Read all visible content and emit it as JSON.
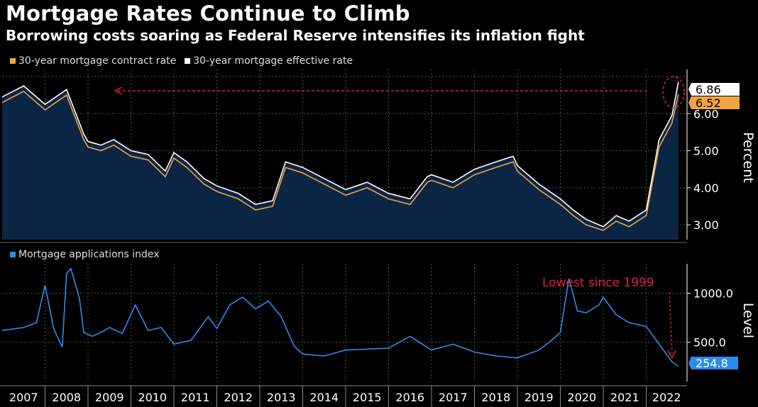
{
  "header": {
    "title": "Mortgage Rates Continue to Climb",
    "subtitle": "Borrowing costs soaring as Federal Reserve intensifies its inflation fight"
  },
  "colors": {
    "contract": "#f5a442",
    "effective": "#ffffff",
    "area": "#0b2544",
    "applications": "#2a8cf0",
    "annotation": "#e0213d",
    "grid": "#555555"
  },
  "chart_data": [
    {
      "type": "line",
      "legend": [
        "30-year mortgage contract rate",
        "30-year mortgage effective rate"
      ],
      "ylabel": "Percent",
      "ylim": [
        2.6,
        7.0
      ],
      "yticks": [
        "3.00",
        "4.00",
        "5.00",
        "6.00"
      ],
      "grid": true,
      "last_value_labels": {
        "effective": "6.86",
        "contract": "6.52"
      },
      "x": [
        2007.0,
        2007.5,
        2008.0,
        2008.5,
        2008.9,
        2009.0,
        2009.3,
        2009.6,
        2010.0,
        2010.4,
        2010.8,
        2011.0,
        2011.3,
        2011.7,
        2012.0,
        2012.5,
        2012.9,
        2013.3,
        2013.6,
        2014.0,
        2014.5,
        2015.0,
        2015.5,
        2016.0,
        2016.5,
        2016.9,
        2017.0,
        2017.5,
        2018.0,
        2018.5,
        2018.9,
        2019.0,
        2019.5,
        2020.0,
        2020.3,
        2020.6,
        2021.0,
        2021.3,
        2021.6,
        2022.0,
        2022.3,
        2022.6,
        2022.75
      ],
      "series": [
        {
          "name": "30-year mortgage effective rate",
          "values": [
            6.45,
            6.75,
            6.25,
            6.65,
            5.45,
            5.25,
            5.15,
            5.3,
            5.0,
            4.9,
            4.45,
            4.95,
            4.7,
            4.25,
            4.05,
            3.85,
            3.55,
            3.65,
            4.7,
            4.55,
            4.25,
            3.95,
            4.15,
            3.85,
            3.7,
            4.3,
            4.35,
            4.15,
            4.5,
            4.7,
            4.85,
            4.6,
            4.1,
            3.7,
            3.4,
            3.15,
            2.95,
            3.25,
            3.1,
            3.4,
            5.3,
            5.95,
            6.86
          ]
        },
        {
          "name": "30-year mortgage contract rate",
          "values": [
            6.3,
            6.6,
            6.1,
            6.5,
            5.3,
            5.1,
            5.0,
            5.15,
            4.85,
            4.75,
            4.3,
            4.8,
            4.55,
            4.1,
            3.9,
            3.7,
            3.4,
            3.5,
            4.55,
            4.4,
            4.1,
            3.8,
            4.0,
            3.7,
            3.55,
            4.15,
            4.2,
            4.0,
            4.35,
            4.55,
            4.7,
            4.45,
            3.95,
            3.55,
            3.25,
            3.0,
            2.85,
            3.1,
            2.95,
            3.25,
            5.1,
            5.75,
            6.52
          ]
        }
      ]
    },
    {
      "type": "line",
      "legend": [
        "Mortgage applications index"
      ],
      "ylabel": "Level",
      "ylim": [
        100,
        1300
      ],
      "yticks": [
        "500.0",
        "1000.0"
      ],
      "grid": true,
      "last_value_label": "254.8",
      "annotation": "Lowest since 1999",
      "x": [
        2007.0,
        2007.5,
        2007.8,
        2008.0,
        2008.2,
        2008.4,
        2008.5,
        2008.6,
        2008.8,
        2008.9,
        2009.1,
        2009.3,
        2009.5,
        2009.8,
        2010.1,
        2010.4,
        2010.7,
        2011.0,
        2011.4,
        2011.8,
        2012.0,
        2012.3,
        2012.6,
        2012.9,
        2013.2,
        2013.5,
        2013.8,
        2014.0,
        2014.5,
        2015.0,
        2015.5,
        2016.0,
        2016.5,
        2017.0,
        2017.5,
        2018.0,
        2018.5,
        2019.0,
        2019.5,
        2019.8,
        2020.0,
        2020.2,
        2020.4,
        2020.6,
        2020.9,
        2021.0,
        2021.3,
        2021.6,
        2022.0,
        2022.3,
        2022.6,
        2022.75
      ],
      "series": [
        {
          "name": "Mortgage applications index",
          "values": [
            620,
            650,
            700,
            1080,
            640,
            450,
            1200,
            1250,
            950,
            600,
            560,
            600,
            650,
            590,
            880,
            620,
            650,
            480,
            520,
            760,
            640,
            880,
            960,
            840,
            920,
            760,
            460,
            380,
            360,
            420,
            430,
            440,
            560,
            420,
            480,
            400,
            360,
            340,
            420,
            520,
            600,
            1150,
            820,
            800,
            880,
            960,
            780,
            700,
            660,
            480,
            300,
            254.8
          ]
        }
      ]
    }
  ],
  "x_axis": {
    "years": [
      "2007",
      "2008",
      "2009",
      "2010",
      "2011",
      "2012",
      "2013",
      "2014",
      "2015",
      "2016",
      "2017",
      "2018",
      "2019",
      "2020",
      "2021",
      "2022"
    ]
  }
}
